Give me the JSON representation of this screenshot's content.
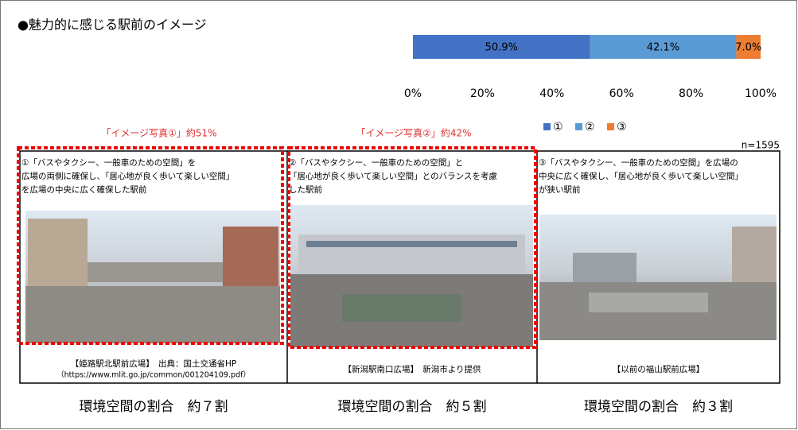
{
  "title": "●魅力的に感じる駅前のイメージ",
  "chart_data": {
    "type": "stacked-bar-horizontal",
    "series": [
      {
        "name": "①",
        "color": "#4472c4",
        "values": [
          50.9
        ],
        "value_labels": [
          "50.9%"
        ]
      },
      {
        "name": "②",
        "color": "#5b9bd5",
        "values": [
          42.1
        ],
        "value_labels": [
          "42.1%"
        ]
      },
      {
        "name": "③",
        "color": "#ed7d31",
        "values": [
          7.0
        ],
        "value_labels": [
          "7.0%"
        ]
      }
    ],
    "xlim": [
      0,
      100
    ],
    "xticks": [
      {
        "value": 0,
        "label": "0%"
      },
      {
        "value": 20,
        "label": "20%"
      },
      {
        "value": 40,
        "label": "40%"
      },
      {
        "value": 60,
        "label": "60%"
      },
      {
        "value": 80,
        "label": "80%"
      },
      {
        "value": 100,
        "label": "100%"
      }
    ],
    "legend": "bottom",
    "annotation": "n=1595"
  },
  "highlights": [
    "「イメージ写真①」約51%",
    "「イメージ写真②」約42%"
  ],
  "panels": [
    {
      "lines": [
        "①「バスやタクシー、一般車のための空間」を",
        "広場の両側に確保し、「居心地が良く歩いて楽しい空間」",
        "を広場の中央に広く確保した駅前"
      ],
      "caption": [
        "【姫路駅北駅前広場】　出典：国土交通省HP",
        "（https://www.mlit.go.jp/common/001204109.pdf）"
      ],
      "ratio": "環境空間の割合　約７割"
    },
    {
      "lines": [
        "②「バスやタクシー、一般車のための空間」と",
        "「居心地が良く歩いて楽しい空間」とのバランスを考慮",
        "した駅前"
      ],
      "caption": [
        "【新潟駅南口広場】　新潟市より提供"
      ],
      "ratio": "環境空間の割合　約５割"
    },
    {
      "lines": [
        "③「バスやタクシー、一般車のための空間」を広場の",
        "中央に広く確保し、「居心地が良く歩いて楽しい空間」",
        "が狭い駅前"
      ],
      "caption": [
        "【以前の福山駅前広場】"
      ],
      "ratio": "環境空間の割合　約３割"
    }
  ]
}
